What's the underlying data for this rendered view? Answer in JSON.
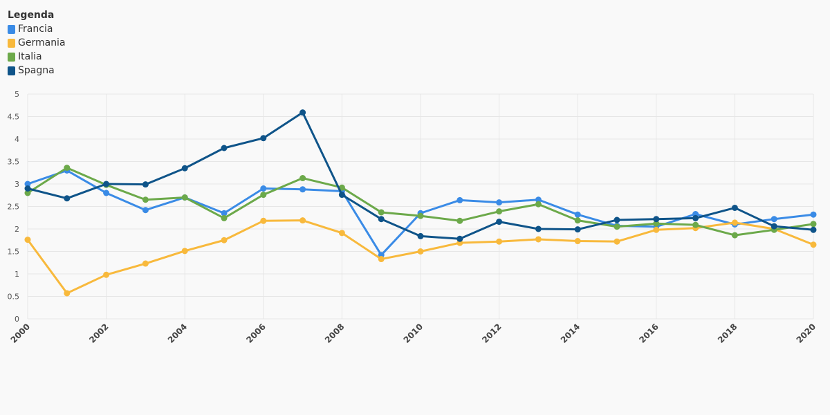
{
  "legend": {
    "title": "Legenda"
  },
  "chart_data": {
    "type": "line",
    "title": "",
    "xlabel": "",
    "ylabel": "",
    "ylim": [
      0,
      5
    ],
    "yticks": [
      "0",
      "0.5",
      "1",
      "1.5",
      "2",
      "2.5",
      "3",
      "3.5",
      "4",
      "4.5",
      "5"
    ],
    "xticks": [
      "2000",
      "2002",
      "2004",
      "2006",
      "2008",
      "2010",
      "2012",
      "2014",
      "2016",
      "2018",
      "2020"
    ],
    "x": [
      2000,
      2001,
      2002,
      2003,
      2004,
      2005,
      2006,
      2007,
      2008,
      2009,
      2010,
      2011,
      2012,
      2013,
      2014,
      2015,
      2016,
      2017,
      2018,
      2019,
      2020
    ],
    "grid": true,
    "legend_position": "top-left",
    "series": [
      {
        "name": "Francia",
        "color": "#3a8be6",
        "values": [
          3.0,
          3.3,
          2.8,
          2.42,
          2.7,
          2.35,
          2.9,
          2.88,
          2.84,
          1.42,
          2.35,
          2.64,
          2.59,
          2.65,
          2.32,
          2.07,
          2.05,
          2.33,
          2.1,
          2.22,
          2.32
        ]
      },
      {
        "name": "Germania",
        "color": "#f8b93c",
        "values": [
          1.76,
          0.57,
          0.98,
          1.23,
          1.51,
          1.75,
          2.18,
          2.19,
          1.91,
          1.33,
          1.5,
          1.69,
          1.72,
          1.77,
          1.73,
          1.72,
          1.98,
          2.02,
          2.14,
          2.0,
          1.65
        ]
      },
      {
        "name": "Italia",
        "color": "#6ca94a",
        "values": [
          2.8,
          3.36,
          2.98,
          2.65,
          2.7,
          2.24,
          2.76,
          3.13,
          2.92,
          2.37,
          2.29,
          2.18,
          2.39,
          2.55,
          2.19,
          2.05,
          2.12,
          2.09,
          1.86,
          1.98,
          2.11
        ]
      },
      {
        "name": "Spagna",
        "color": "#0f5489",
        "values": [
          2.9,
          2.68,
          3.0,
          2.99,
          3.35,
          3.8,
          4.02,
          4.59,
          2.76,
          2.22,
          1.84,
          1.78,
          2.16,
          2.0,
          1.99,
          2.2,
          2.22,
          2.24,
          2.47,
          2.06,
          1.98
        ]
      }
    ]
  }
}
